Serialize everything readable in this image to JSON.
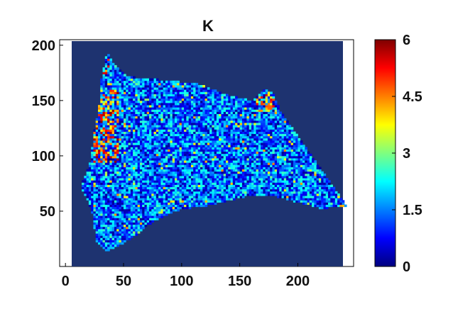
{
  "chart_data": {
    "type": "heatmap",
    "title": "K",
    "xlabel": "",
    "ylabel": "",
    "xlim": [
      -5,
      248
    ],
    "ylim": [
      0,
      205
    ],
    "xticks": [
      0,
      50,
      100,
      150,
      200
    ],
    "yticks": [
      50,
      100,
      150,
      200
    ],
    "grid": false,
    "background_value": 0,
    "background_color": "#1e3370",
    "colorbar": {
      "range": [
        0,
        6
      ],
      "ticks": [
        "0",
        "1.5",
        "3",
        "4.5",
        "6"
      ],
      "colormap": "jet",
      "colors": [
        "#00007f",
        "#0000ff",
        "#007fff",
        "#00ffff",
        "#7fff7f",
        "#ffff00",
        "#ff7f00",
        "#ff0000",
        "#7f0000"
      ]
    },
    "region_outline_xy": [
      [
        13,
        72
      ],
      [
        22,
        96
      ],
      [
        24,
        118
      ],
      [
        29,
        145
      ],
      [
        31,
        170
      ],
      [
        36,
        194
      ],
      [
        42,
        183
      ],
      [
        52,
        172
      ],
      [
        70,
        170
      ],
      [
        90,
        168
      ],
      [
        115,
        165
      ],
      [
        140,
        155
      ],
      [
        160,
        150
      ],
      [
        172,
        160
      ],
      [
        178,
        158
      ],
      [
        185,
        140
      ],
      [
        200,
        118
      ],
      [
        220,
        88
      ],
      [
        232,
        70
      ],
      [
        242,
        55
      ],
      [
        232,
        55
      ],
      [
        222,
        52
      ],
      [
        212,
        55
      ],
      [
        200,
        58
      ],
      [
        182,
        63
      ],
      [
        162,
        65
      ],
      [
        142,
        60
      ],
      [
        122,
        55
      ],
      [
        100,
        52
      ],
      [
        85,
        46
      ],
      [
        72,
        38
      ],
      [
        60,
        28
      ],
      [
        48,
        20
      ],
      [
        35,
        14
      ],
      [
        26,
        24
      ],
      [
        24,
        45
      ],
      [
        20,
        58
      ]
    ],
    "typical_value_inside": 1.2,
    "hot_spot_regions": [
      {
        "x_range": [
          25,
          45
        ],
        "y_range": [
          95,
          160
        ],
        "value_range": [
          3.5,
          6
        ]
      },
      {
        "x_range": [
          30,
          38
        ],
        "y_range": [
          175,
          190
        ],
        "value_range": [
          4,
          6
        ]
      },
      {
        "x_range": [
          165,
          180
        ],
        "y_range": [
          140,
          155
        ],
        "value_range": [
          3,
          5.5
        ]
      }
    ]
  }
}
